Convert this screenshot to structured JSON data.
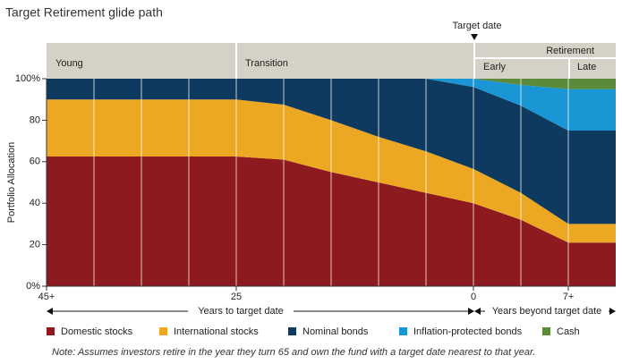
{
  "chart_data": {
    "type": "area",
    "stacked": true,
    "title": "Target Retirement glide path",
    "y_label": "Portfolio Allocation",
    "categories": [
      "45+",
      null,
      null,
      null,
      "25",
      null,
      null,
      null,
      null,
      "0",
      null,
      "7+",
      null
    ],
    "series": [
      {
        "name": "Domestic stocks",
        "color": "#8c1a1f",
        "values": [
          62.5,
          62.5,
          62.5,
          62.5,
          62.5,
          61,
          55,
          50,
          45,
          40,
          32,
          21,
          21
        ]
      },
      {
        "name": "International stocks",
        "color": "#eda823",
        "values": [
          27.5,
          27.5,
          27.5,
          27.5,
          27.5,
          26.5,
          25,
          22,
          20,
          16.5,
          13,
          9,
          9
        ]
      },
      {
        "name": "Nominal bonds",
        "color": "#0f3a5f",
        "values": [
          10,
          10,
          10,
          10,
          10,
          12.5,
          20,
          28,
          35,
          39.5,
          42,
          45,
          45
        ]
      },
      {
        "name": "Inflation-protected bonds",
        "color": "#1a96d4",
        "values": [
          0,
          0,
          0,
          0,
          0,
          0,
          0,
          0,
          0,
          4,
          10,
          20,
          20
        ]
      },
      {
        "name": "Cash",
        "color": "#5a8a3a",
        "values": [
          0,
          0,
          0,
          0,
          0,
          0,
          0,
          0,
          0,
          0,
          3,
          5,
          5
        ]
      }
    ],
    "ylim": [
      0,
      100
    ],
    "yticks": [
      {
        "value": 0,
        "label": "0%"
      },
      20,
      40,
      60,
      80,
      {
        "value": 100,
        "label": "100%"
      }
    ],
    "grid": true,
    "phases": [
      "Young",
      "Transition",
      "Early",
      "Late"
    ],
    "phase_header": "Retirement",
    "target_label": "Target date",
    "x_arrows": [
      "Years to target date",
      "Years beyond target date"
    ],
    "note": "Note: Assumes investors retire in the year they turn 65 and own the fund with a target date nearest to that year."
  }
}
